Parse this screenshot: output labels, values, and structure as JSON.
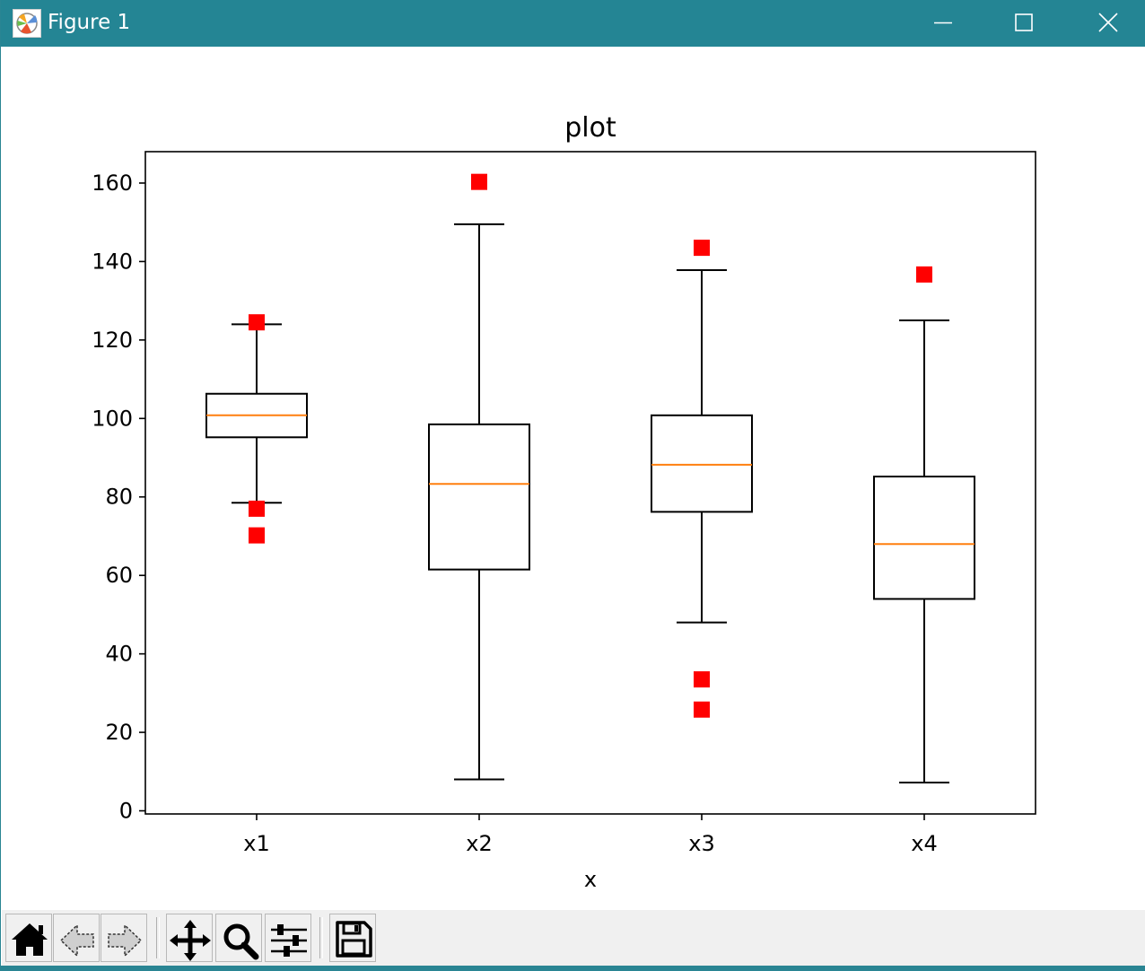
{
  "window": {
    "title": "Figure 1",
    "icon": "matplotlib-icon",
    "controls": [
      "minimize-icon",
      "maximize-icon",
      "close-icon"
    ]
  },
  "toolbar": {
    "buttons": [
      {
        "name": "home-button",
        "icon": "home-icon"
      },
      {
        "name": "back-button",
        "icon": "back-arrow-icon"
      },
      {
        "name": "forward-button",
        "icon": "forward-arrow-icon"
      },
      {
        "name": "pan-button",
        "icon": "move-icon"
      },
      {
        "name": "zoom-button",
        "icon": "magnifier-icon"
      },
      {
        "name": "configure-subplots-button",
        "icon": "sliders-icon"
      },
      {
        "name": "save-button",
        "icon": "floppy-disk-icon"
      }
    ]
  },
  "chart_data": {
    "type": "box",
    "title": "plot",
    "xlabel": "x",
    "ylabel": "",
    "ylim": [
      -0.8,
      168
    ],
    "yticks": [
      0,
      20,
      40,
      60,
      80,
      100,
      120,
      140,
      160
    ],
    "categories": [
      "x1",
      "x2",
      "x3",
      "x4"
    ],
    "boxes": [
      {
        "name": "x1",
        "whislo": 78.5,
        "q1": 95.2,
        "med": 100.8,
        "q3": 106.3,
        "whishi": 124,
        "fliers": [
          124.5,
          77,
          70.2
        ]
      },
      {
        "name": "x2",
        "whislo": 8,
        "q1": 61.5,
        "med": 83.3,
        "q3": 98.5,
        "whishi": 149.5,
        "fliers": [
          160.3
        ]
      },
      {
        "name": "x3",
        "whislo": 48,
        "q1": 76.2,
        "med": 88.2,
        "q3": 100.8,
        "whishi": 137.8,
        "fliers": [
          143.5,
          33.5,
          25.8
        ]
      },
      {
        "name": "x4",
        "whislo": 7.2,
        "q1": 54,
        "med": 68,
        "q3": 85.2,
        "whishi": 125,
        "fliers": [
          136.7
        ]
      }
    ],
    "colors": {
      "box": "#000000",
      "median": "#ff7f0e",
      "flier": "#ff0000"
    },
    "grid": false,
    "legend": "none"
  }
}
